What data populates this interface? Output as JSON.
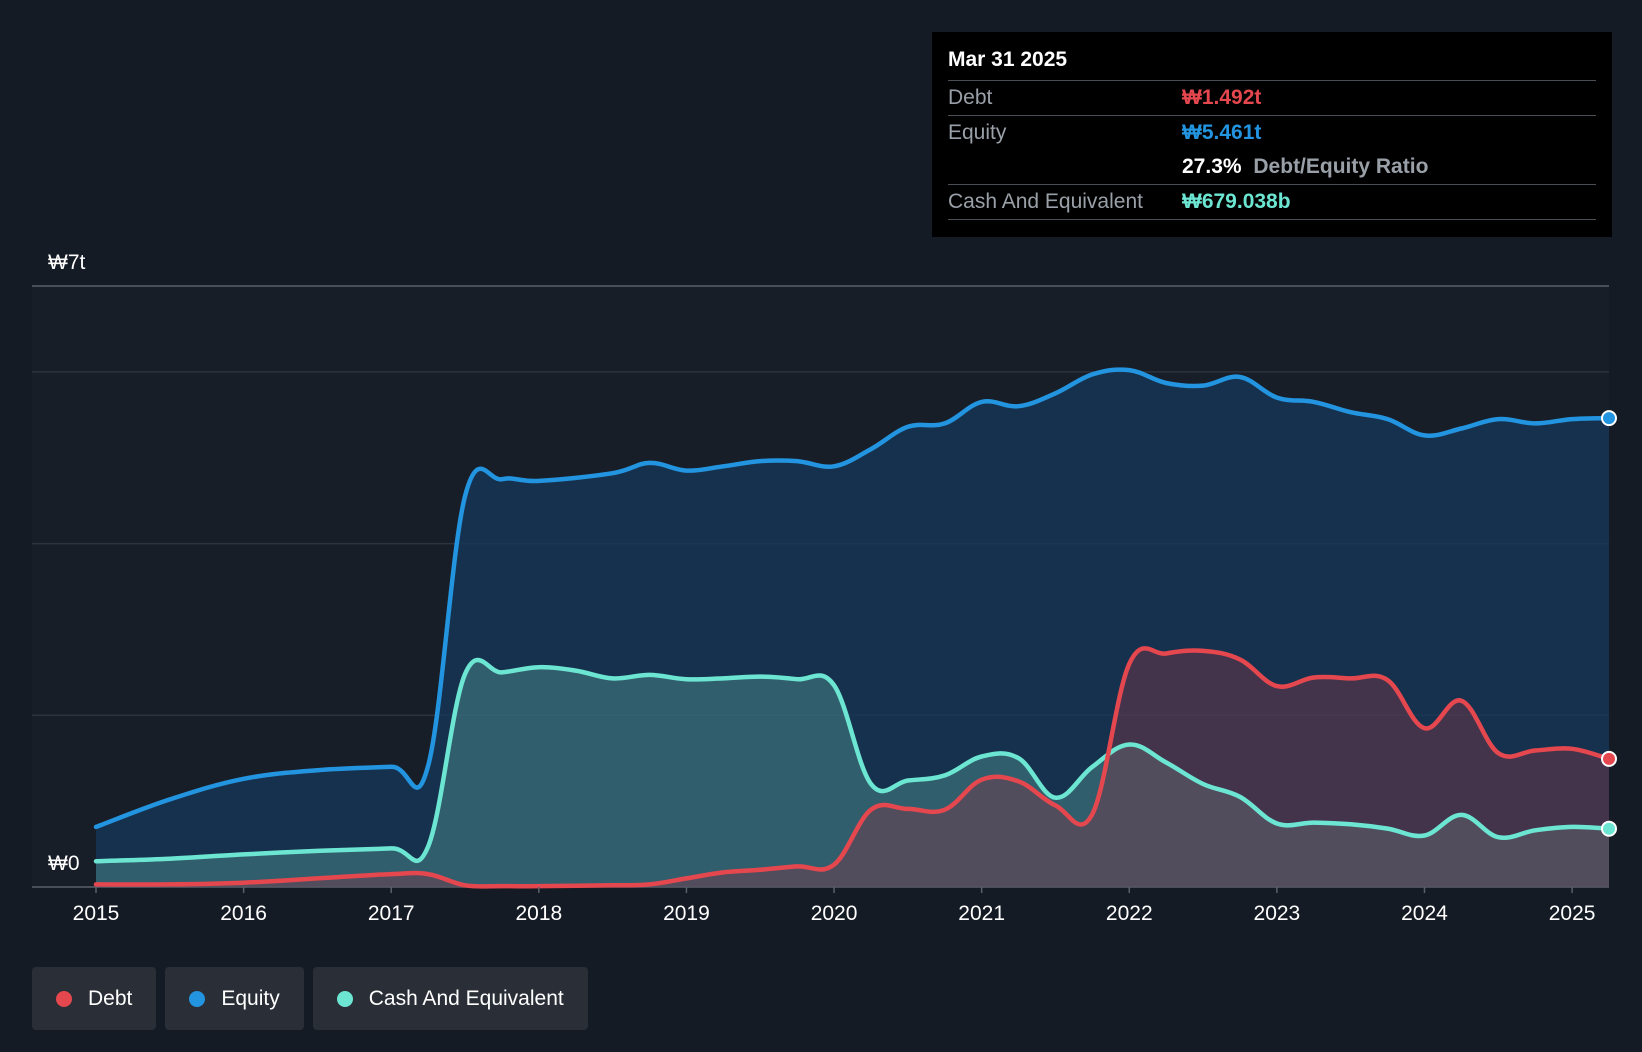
{
  "tooltip": {
    "date": "Mar 31 2025",
    "debt_label": "Debt",
    "debt_value": "₩1.492t",
    "equity_label": "Equity",
    "equity_value": "₩5.461t",
    "ratio_value": "27.3%",
    "ratio_label": "Debt/Equity Ratio",
    "cash_label": "Cash And Equivalent",
    "cash_value": "₩679.038b"
  },
  "legend": {
    "debt": "Debt",
    "equity": "Equity",
    "cash": "Cash And Equivalent"
  },
  "colors": {
    "debt": "#e5474f",
    "equity": "#2394df",
    "cash": "#6ce6d2",
    "background": "#151b24"
  },
  "chart_data": {
    "type": "area",
    "title": "",
    "xlabel": "",
    "ylabel": "",
    "y_tick_labels": [
      "₩0",
      "₩7t"
    ],
    "ylim": [
      0,
      7
    ],
    "y_unit": "trillion KRW",
    "x_ticks": [
      "2015",
      "2016",
      "2017",
      "2018",
      "2019",
      "2020",
      "2021",
      "2022",
      "2023",
      "2024",
      "2025"
    ],
    "xlim": [
      2015.0,
      2025.25
    ],
    "grid": true,
    "series": [
      {
        "name": "Equity",
        "points": [
          [
            2015.0,
            0.7
          ],
          [
            2015.5,
            1.02
          ],
          [
            2016.0,
            1.26
          ],
          [
            2016.5,
            1.36
          ],
          [
            2017.0,
            1.4
          ],
          [
            2017.25,
            1.41
          ],
          [
            2017.5,
            4.55
          ],
          [
            2017.75,
            4.75
          ],
          [
            2018.0,
            4.73
          ],
          [
            2018.5,
            4.82
          ],
          [
            2018.75,
            4.94
          ],
          [
            2019.0,
            4.85
          ],
          [
            2019.25,
            4.9
          ],
          [
            2019.5,
            4.96
          ],
          [
            2019.75,
            4.96
          ],
          [
            2020.0,
            4.9
          ],
          [
            2020.25,
            5.1
          ],
          [
            2020.5,
            5.36
          ],
          [
            2020.75,
            5.4
          ],
          [
            2021.0,
            5.65
          ],
          [
            2021.25,
            5.6
          ],
          [
            2021.5,
            5.75
          ],
          [
            2021.75,
            5.97
          ],
          [
            2022.0,
            6.02
          ],
          [
            2022.25,
            5.87
          ],
          [
            2022.5,
            5.84
          ],
          [
            2022.75,
            5.94
          ],
          [
            2023.0,
            5.7
          ],
          [
            2023.25,
            5.65
          ],
          [
            2023.5,
            5.53
          ],
          [
            2023.75,
            5.45
          ],
          [
            2024.0,
            5.26
          ],
          [
            2024.25,
            5.34
          ],
          [
            2024.5,
            5.45
          ],
          [
            2024.75,
            5.4
          ],
          [
            2025.0,
            5.45
          ],
          [
            2025.25,
            5.461
          ]
        ]
      },
      {
        "name": "Cash And Equivalent",
        "points": [
          [
            2015.0,
            0.3
          ],
          [
            2015.5,
            0.33
          ],
          [
            2016.0,
            0.38
          ],
          [
            2016.5,
            0.42
          ],
          [
            2017.0,
            0.45
          ],
          [
            2017.25,
            0.47
          ],
          [
            2017.5,
            2.48
          ],
          [
            2017.75,
            2.5
          ],
          [
            2018.0,
            2.56
          ],
          [
            2018.25,
            2.52
          ],
          [
            2018.5,
            2.43
          ],
          [
            2018.75,
            2.47
          ],
          [
            2019.0,
            2.42
          ],
          [
            2019.25,
            2.43
          ],
          [
            2019.5,
            2.45
          ],
          [
            2019.75,
            2.42
          ],
          [
            2020.0,
            2.35
          ],
          [
            2020.25,
            1.2
          ],
          [
            2020.5,
            1.24
          ],
          [
            2020.75,
            1.3
          ],
          [
            2021.0,
            1.52
          ],
          [
            2021.25,
            1.5
          ],
          [
            2021.5,
            1.04
          ],
          [
            2021.75,
            1.4
          ],
          [
            2022.0,
            1.66
          ],
          [
            2022.25,
            1.45
          ],
          [
            2022.5,
            1.2
          ],
          [
            2022.75,
            1.05
          ],
          [
            2023.0,
            0.74
          ],
          [
            2023.25,
            0.75
          ],
          [
            2023.5,
            0.73
          ],
          [
            2023.75,
            0.68
          ],
          [
            2024.0,
            0.6
          ],
          [
            2024.25,
            0.84
          ],
          [
            2024.5,
            0.58
          ],
          [
            2024.75,
            0.66
          ],
          [
            2025.0,
            0.7
          ],
          [
            2025.25,
            0.679
          ]
        ]
      },
      {
        "name": "Debt",
        "points": [
          [
            2015.0,
            0.03
          ],
          [
            2015.5,
            0.03
          ],
          [
            2016.0,
            0.05
          ],
          [
            2016.5,
            0.1
          ],
          [
            2017.0,
            0.15
          ],
          [
            2017.25,
            0.15
          ],
          [
            2017.5,
            0.02
          ],
          [
            2017.75,
            0.01
          ],
          [
            2018.0,
            0.01
          ],
          [
            2018.5,
            0.02
          ],
          [
            2018.75,
            0.03
          ],
          [
            2019.0,
            0.1
          ],
          [
            2019.25,
            0.17
          ],
          [
            2019.5,
            0.2
          ],
          [
            2019.75,
            0.24
          ],
          [
            2020.0,
            0.26
          ],
          [
            2020.25,
            0.9
          ],
          [
            2020.5,
            0.91
          ],
          [
            2020.75,
            0.9
          ],
          [
            2021.0,
            1.25
          ],
          [
            2021.25,
            1.23
          ],
          [
            2021.5,
            0.95
          ],
          [
            2021.75,
            0.85
          ],
          [
            2022.0,
            2.6
          ],
          [
            2022.25,
            2.72
          ],
          [
            2022.5,
            2.75
          ],
          [
            2022.75,
            2.65
          ],
          [
            2023.0,
            2.34
          ],
          [
            2023.25,
            2.44
          ],
          [
            2023.5,
            2.43
          ],
          [
            2023.75,
            2.41
          ],
          [
            2024.0,
            1.85
          ],
          [
            2024.25,
            2.17
          ],
          [
            2024.5,
            1.56
          ],
          [
            2024.75,
            1.59
          ],
          [
            2025.0,
            1.61
          ],
          [
            2025.25,
            1.492
          ]
        ]
      }
    ]
  }
}
